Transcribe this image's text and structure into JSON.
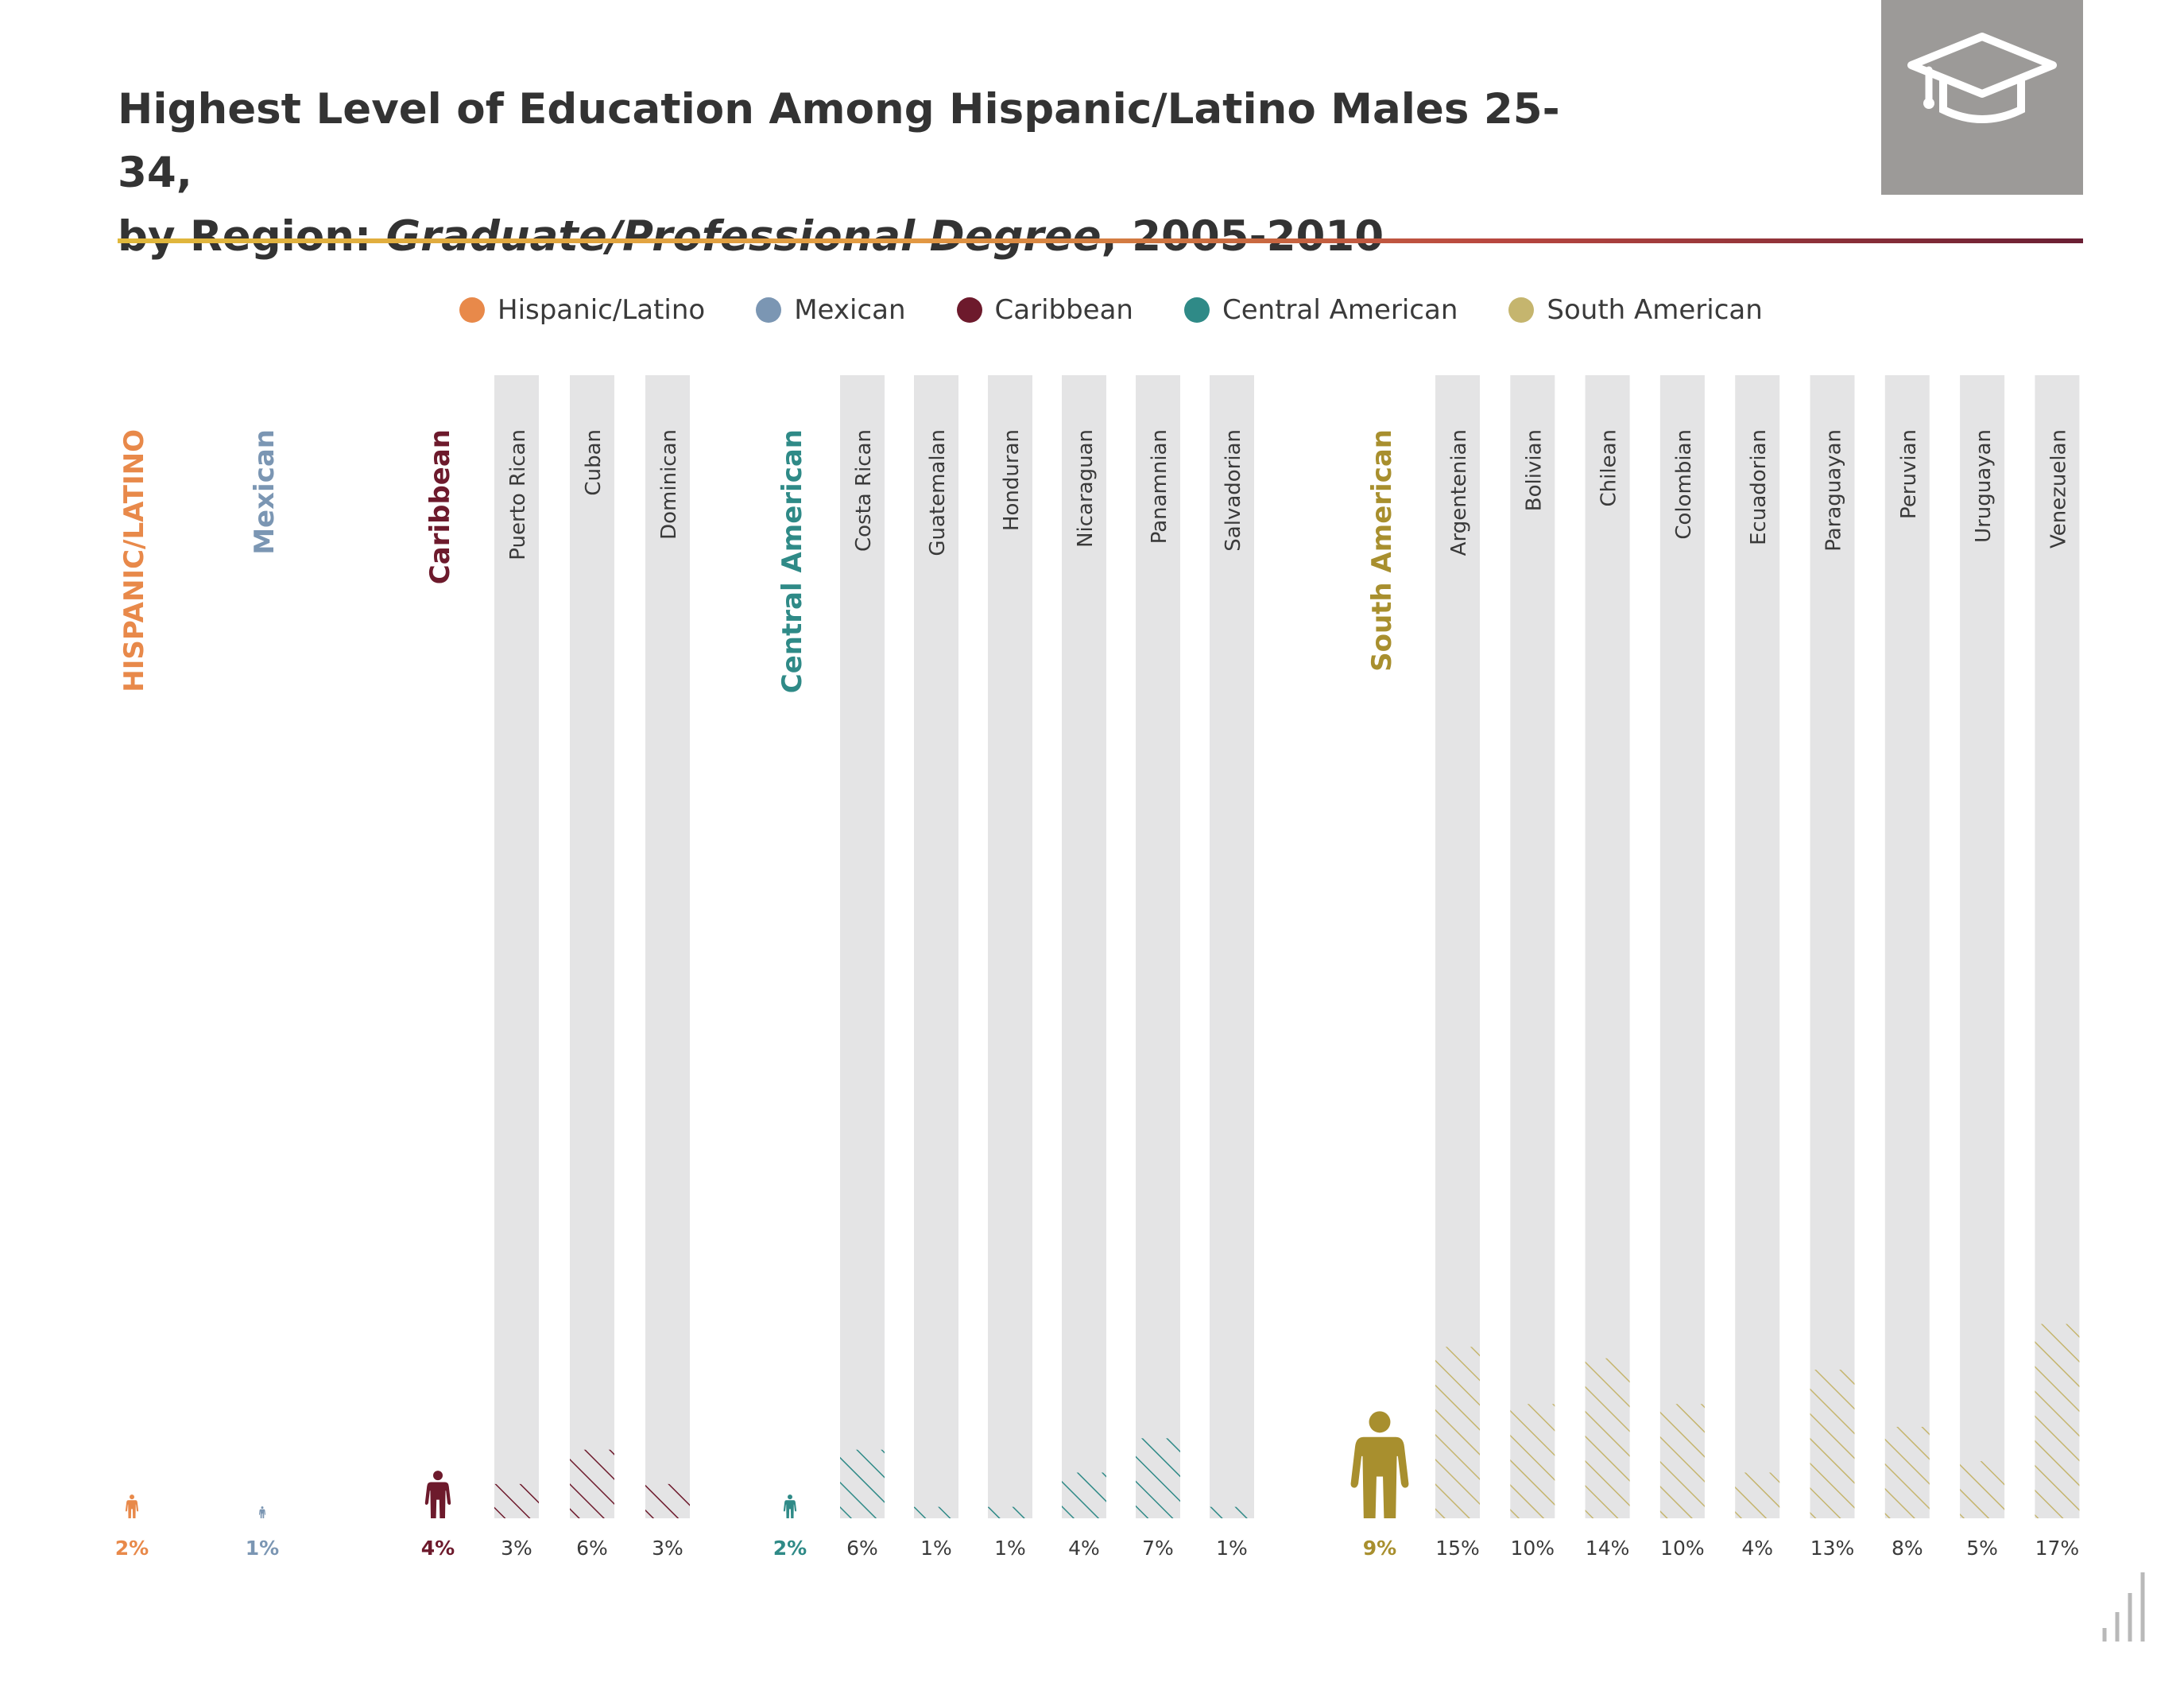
{
  "title": {
    "line1": "Highest Level of Education Among Hispanic/Latino Males 25-34,",
    "line2_prefix": "by Region: ",
    "line2_italic": "Graduate/Professional Degree",
    "line2_suffix": ", 2005-2010"
  },
  "badge": {
    "icon": "graduation-cap-icon"
  },
  "legend": [
    {
      "label": "Hispanic/Latino",
      "color": "#e8894a"
    },
    {
      "label": "Mexican",
      "color": "#7b96b3"
    },
    {
      "label": "Caribbean",
      "color": "#6d1a2c"
    },
    {
      "label": "Central American",
      "color": "#2f8a87"
    },
    {
      "label": "South American",
      "color": "#c5b56e"
    }
  ],
  "chart_data": {
    "type": "bar",
    "ylim": [
      0,
      100
    ],
    "value_unit": "%",
    "regions": [
      {
        "name": "HISPANIC/LATINO",
        "value": 2,
        "label": "2%",
        "color": "#e8894a",
        "icon": "person-icon",
        "subgroups": []
      },
      {
        "name": "Mexican",
        "value": 1,
        "label": "1%",
        "color": "#7b96b3",
        "icon": "person-icon",
        "subgroups": []
      },
      {
        "name": "Caribbean",
        "value": 4,
        "label": "4%",
        "color": "#6d1a2c",
        "icon": "person-icon",
        "subgroups": [
          {
            "name": "Puerto Rican",
            "value": 3,
            "label": "3%"
          },
          {
            "name": "Cuban",
            "value": 6,
            "label": "6%"
          },
          {
            "name": "Dominican",
            "value": 3,
            "label": "3%"
          }
        ]
      },
      {
        "name": "Central American",
        "value": 2,
        "label": "2%",
        "color": "#2f8a87",
        "icon": "person-icon",
        "subgroups": [
          {
            "name": "Costa Rican",
            "value": 6,
            "label": "6%"
          },
          {
            "name": "Guatemalan",
            "value": 1,
            "label": "1%"
          },
          {
            "name": "Honduran",
            "value": 1,
            "label": "1%"
          },
          {
            "name": "Nicaraguan",
            "value": 4,
            "label": "4%"
          },
          {
            "name": "Panamnian",
            "value": 7,
            "label": "7%"
          },
          {
            "name": "Salvadorian",
            "value": 1,
            "label": "1%"
          }
        ]
      },
      {
        "name": "South American",
        "value": 9,
        "label": "9%",
        "color": "#a88f2e",
        "icon": "person-icon",
        "subgroups": [
          {
            "name": "Argentenian",
            "value": 15,
            "label": "15%"
          },
          {
            "name": "Bolivian",
            "value": 10,
            "label": "10%"
          },
          {
            "name": "Chilean",
            "value": 14,
            "label": "14%"
          },
          {
            "name": "Colombian",
            "value": 10,
            "label": "10%"
          },
          {
            "name": "Ecuadorian",
            "value": 4,
            "label": "4%"
          },
          {
            "name": "Paraguayan",
            "value": 13,
            "label": "13%"
          },
          {
            "name": "Peruvian",
            "value": 8,
            "label": "8%"
          },
          {
            "name": "Uruguayan",
            "value": 5,
            "label": "5%"
          },
          {
            "name": "Venezuelan",
            "value": 17,
            "label": "17%"
          }
        ]
      }
    ]
  }
}
